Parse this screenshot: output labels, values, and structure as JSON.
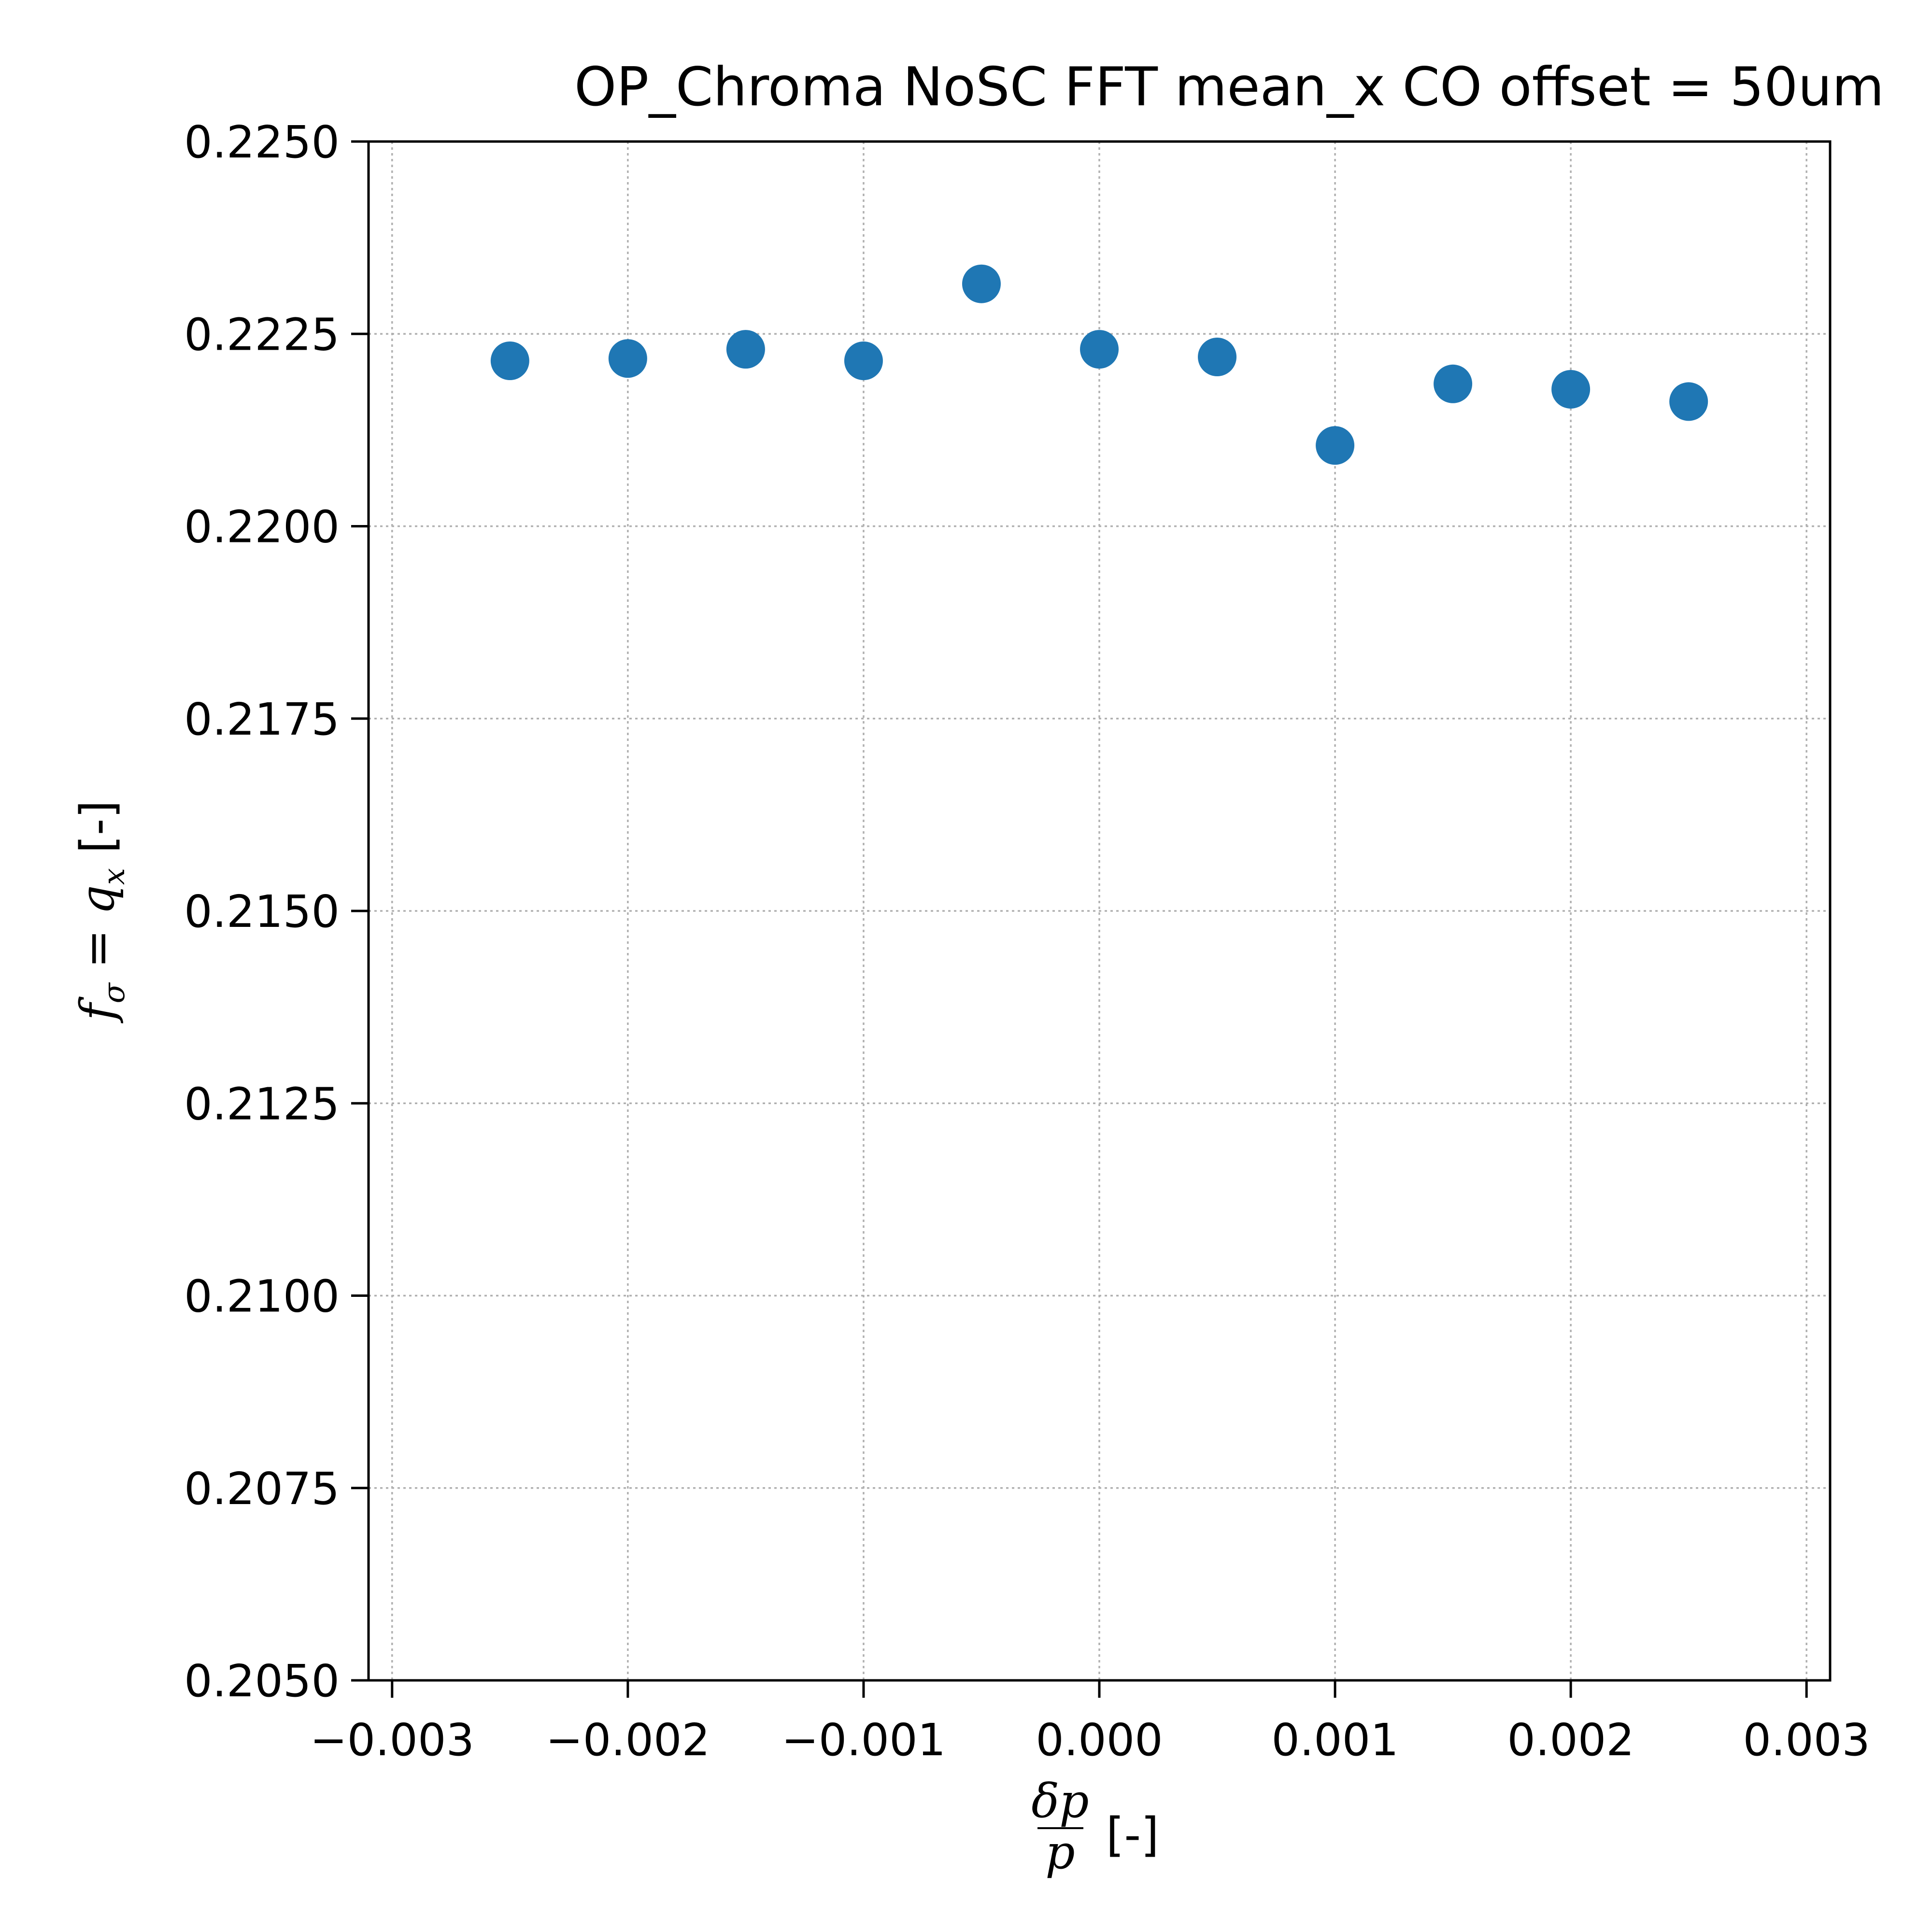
{
  "chart_data": {
    "type": "scatter",
    "title": "OP_Chroma NoSC FFT mean_x  CO offset = 50um",
    "xlabel": "δp/p [-]",
    "ylabel": "f_σ = q_x [-]",
    "xlim": [
      -0.0031,
      0.0031
    ],
    "ylim": [
      0.205,
      0.225
    ],
    "xticks": [
      -0.003,
      -0.002,
      -0.001,
      0.0,
      0.001,
      0.002,
      0.003
    ],
    "xtick_labels": [
      "−0.003",
      "−0.002",
      "−0.001",
      "0.000",
      "0.001",
      "0.002",
      "0.003"
    ],
    "yticks": [
      0.205,
      0.2075,
      0.21,
      0.2125,
      0.215,
      0.2175,
      0.22,
      0.2225,
      0.225
    ],
    "ytick_labels": [
      "0.2050",
      "0.2075",
      "0.2100",
      "0.2125",
      "0.2150",
      "0.2175",
      "0.2200",
      "0.2225",
      "0.2250"
    ],
    "grid": true,
    "marker_color": "#1f77b4",
    "x": [
      -0.0025,
      -0.002,
      -0.0015,
      -0.001,
      -0.0005,
      0.0,
      0.0005,
      0.001,
      0.0015,
      0.002,
      0.0025
    ],
    "y": [
      0.22215,
      0.22218,
      0.2223,
      0.22215,
      0.22315,
      0.2223,
      0.2222,
      0.22105,
      0.22185,
      0.22178,
      0.22162
    ]
  }
}
